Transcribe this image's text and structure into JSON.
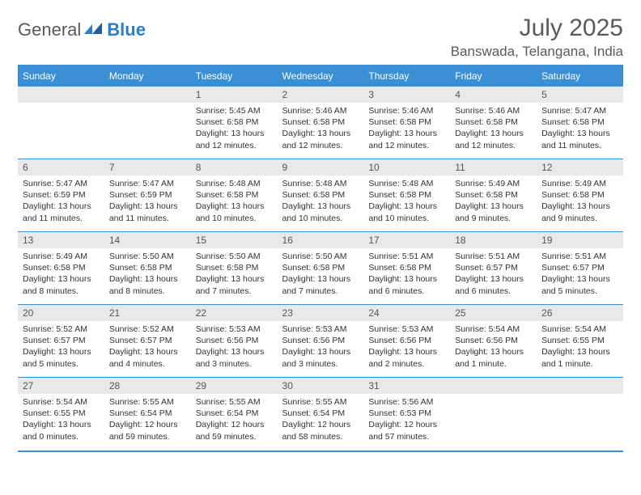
{
  "logo": {
    "general": "General",
    "blue": "Blue"
  },
  "title": "July 2025",
  "location": "Banswada, Telangana, India",
  "colors": {
    "accent": "#3b8fd4",
    "header_text": "#ffffff",
    "band_bg": "#e8e9eb",
    "text": "#333333",
    "title_text": "#5a5a5a"
  },
  "weekdays": [
    "Sunday",
    "Monday",
    "Tuesday",
    "Wednesday",
    "Thursday",
    "Friday",
    "Saturday"
  ],
  "weeks": [
    [
      null,
      null,
      {
        "n": "1",
        "sunrise": "5:45 AM",
        "sunset": "6:58 PM",
        "daylight": "13 hours and 12 minutes."
      },
      {
        "n": "2",
        "sunrise": "5:46 AM",
        "sunset": "6:58 PM",
        "daylight": "13 hours and 12 minutes."
      },
      {
        "n": "3",
        "sunrise": "5:46 AM",
        "sunset": "6:58 PM",
        "daylight": "13 hours and 12 minutes."
      },
      {
        "n": "4",
        "sunrise": "5:46 AM",
        "sunset": "6:58 PM",
        "daylight": "13 hours and 12 minutes."
      },
      {
        "n": "5",
        "sunrise": "5:47 AM",
        "sunset": "6:58 PM",
        "daylight": "13 hours and 11 minutes."
      }
    ],
    [
      {
        "n": "6",
        "sunrise": "5:47 AM",
        "sunset": "6:59 PM",
        "daylight": "13 hours and 11 minutes."
      },
      {
        "n": "7",
        "sunrise": "5:47 AM",
        "sunset": "6:59 PM",
        "daylight": "13 hours and 11 minutes."
      },
      {
        "n": "8",
        "sunrise": "5:48 AM",
        "sunset": "6:58 PM",
        "daylight": "13 hours and 10 minutes."
      },
      {
        "n": "9",
        "sunrise": "5:48 AM",
        "sunset": "6:58 PM",
        "daylight": "13 hours and 10 minutes."
      },
      {
        "n": "10",
        "sunrise": "5:48 AM",
        "sunset": "6:58 PM",
        "daylight": "13 hours and 10 minutes."
      },
      {
        "n": "11",
        "sunrise": "5:49 AM",
        "sunset": "6:58 PM",
        "daylight": "13 hours and 9 minutes."
      },
      {
        "n": "12",
        "sunrise": "5:49 AM",
        "sunset": "6:58 PM",
        "daylight": "13 hours and 9 minutes."
      }
    ],
    [
      {
        "n": "13",
        "sunrise": "5:49 AM",
        "sunset": "6:58 PM",
        "daylight": "13 hours and 8 minutes."
      },
      {
        "n": "14",
        "sunrise": "5:50 AM",
        "sunset": "6:58 PM",
        "daylight": "13 hours and 8 minutes."
      },
      {
        "n": "15",
        "sunrise": "5:50 AM",
        "sunset": "6:58 PM",
        "daylight": "13 hours and 7 minutes."
      },
      {
        "n": "16",
        "sunrise": "5:50 AM",
        "sunset": "6:58 PM",
        "daylight": "13 hours and 7 minutes."
      },
      {
        "n": "17",
        "sunrise": "5:51 AM",
        "sunset": "6:58 PM",
        "daylight": "13 hours and 6 minutes."
      },
      {
        "n": "18",
        "sunrise": "5:51 AM",
        "sunset": "6:57 PM",
        "daylight": "13 hours and 6 minutes."
      },
      {
        "n": "19",
        "sunrise": "5:51 AM",
        "sunset": "6:57 PM",
        "daylight": "13 hours and 5 minutes."
      }
    ],
    [
      {
        "n": "20",
        "sunrise": "5:52 AM",
        "sunset": "6:57 PM",
        "daylight": "13 hours and 5 minutes."
      },
      {
        "n": "21",
        "sunrise": "5:52 AM",
        "sunset": "6:57 PM",
        "daylight": "13 hours and 4 minutes."
      },
      {
        "n": "22",
        "sunrise": "5:53 AM",
        "sunset": "6:56 PM",
        "daylight": "13 hours and 3 minutes."
      },
      {
        "n": "23",
        "sunrise": "5:53 AM",
        "sunset": "6:56 PM",
        "daylight": "13 hours and 3 minutes."
      },
      {
        "n": "24",
        "sunrise": "5:53 AM",
        "sunset": "6:56 PM",
        "daylight": "13 hours and 2 minutes."
      },
      {
        "n": "25",
        "sunrise": "5:54 AM",
        "sunset": "6:56 PM",
        "daylight": "13 hours and 1 minute."
      },
      {
        "n": "26",
        "sunrise": "5:54 AM",
        "sunset": "6:55 PM",
        "daylight": "13 hours and 1 minute."
      }
    ],
    [
      {
        "n": "27",
        "sunrise": "5:54 AM",
        "sunset": "6:55 PM",
        "daylight": "13 hours and 0 minutes."
      },
      {
        "n": "28",
        "sunrise": "5:55 AM",
        "sunset": "6:54 PM",
        "daylight": "12 hours and 59 minutes."
      },
      {
        "n": "29",
        "sunrise": "5:55 AM",
        "sunset": "6:54 PM",
        "daylight": "12 hours and 59 minutes."
      },
      {
        "n": "30",
        "sunrise": "5:55 AM",
        "sunset": "6:54 PM",
        "daylight": "12 hours and 58 minutes."
      },
      {
        "n": "31",
        "sunrise": "5:56 AM",
        "sunset": "6:53 PM",
        "daylight": "12 hours and 57 minutes."
      },
      null,
      null
    ]
  ],
  "labels": {
    "sunrise": "Sunrise:",
    "sunset": "Sunset:",
    "daylight": "Daylight:"
  }
}
